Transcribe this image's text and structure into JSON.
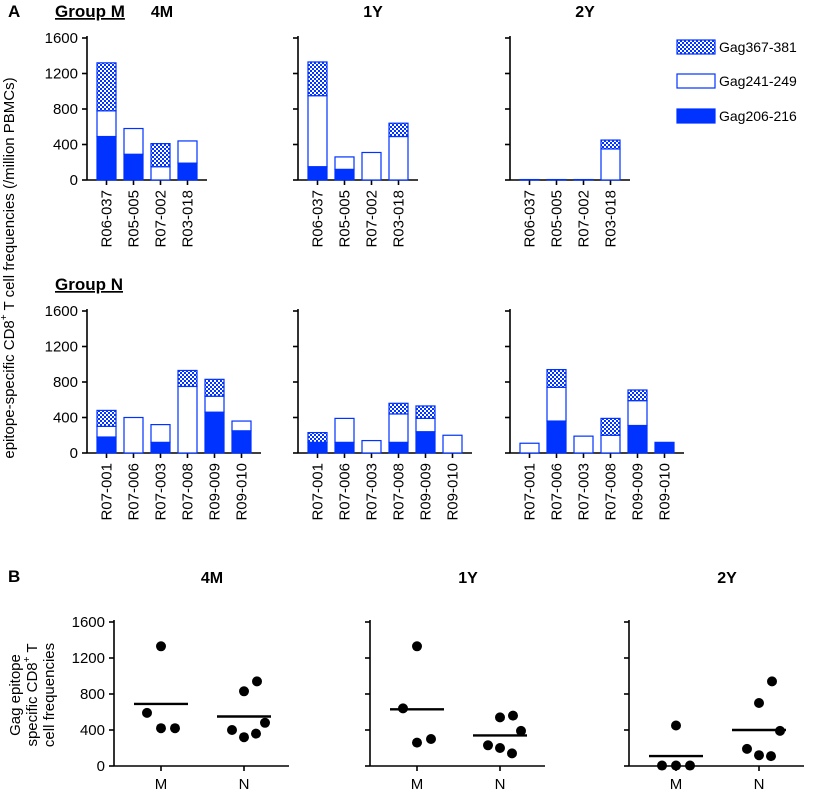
{
  "figure": {
    "label_A": "A",
    "label_B": "B"
  },
  "chart_data": {
    "panel_A": {
      "type": "bar",
      "stacked": true,
      "ylabel_main": "epitope-specific CD8",
      "ylabel_sup": "+",
      "ylabel_tail": " T cell frequencies (/million PBMCs)",
      "ylim": [
        0,
        1600
      ],
      "yticks": [
        "0",
        "400",
        "800",
        "1200",
        "1600"
      ],
      "timepoints": [
        "4M",
        "1Y",
        "2Y"
      ],
      "legend": [
        {
          "name": "Gag367-381",
          "fill": "pattern"
        },
        {
          "name": "Gag241-249",
          "fill": "open"
        },
        {
          "name": "Gag206-216",
          "fill": "solid"
        }
      ],
      "groups": [
        {
          "name": "Group M",
          "categories": [
            "R06-037",
            "R05-005",
            "R07-002",
            "R03-018"
          ],
          "timepoints": [
            {
              "name": "4M",
              "series": [
                {
                  "name": "Gag206-216",
                  "values": [
                    490,
                    290,
                    0,
                    190
                  ]
                },
                {
                  "name": "Gag241-249",
                  "values": [
                    290,
                    290,
                    150,
                    250
                  ]
                },
                {
                  "name": "Gag367-381",
                  "values": [
                    540,
                    0,
                    260,
                    0
                  ]
                }
              ]
            },
            {
              "name": "1Y",
              "series": [
                {
                  "name": "Gag206-216",
                  "values": [
                    150,
                    120,
                    0,
                    0
                  ]
                },
                {
                  "name": "Gag241-249",
                  "values": [
                    800,
                    140,
                    310,
                    490
                  ]
                },
                {
                  "name": "Gag367-381",
                  "values": [
                    380,
                    0,
                    0,
                    150
                  ]
                }
              ]
            },
            {
              "name": "2Y",
              "series": [
                {
                  "name": "Gag206-216",
                  "values": [
                    0,
                    0,
                    0,
                    0
                  ]
                },
                {
                  "name": "Gag241-249",
                  "values": [
                    5,
                    5,
                    5,
                    350
                  ]
                },
                {
                  "name": "Gag367-381",
                  "values": [
                    0,
                    0,
                    0,
                    100
                  ]
                }
              ]
            }
          ]
        },
        {
          "name": "Group N",
          "categories": [
            "R07-001",
            "R07-006",
            "R07-003",
            "R07-008",
            "R09-009",
            "R09-010"
          ],
          "timepoints": [
            {
              "name": "4M",
              "series": [
                {
                  "name": "Gag206-216",
                  "values": [
                    180,
                    0,
                    120,
                    0,
                    460,
                    250
                  ]
                },
                {
                  "name": "Gag241-249",
                  "values": [
                    120,
                    400,
                    200,
                    750,
                    180,
                    110
                  ]
                },
                {
                  "name": "Gag367-381",
                  "values": [
                    180,
                    0,
                    0,
                    180,
                    190,
                    0
                  ]
                }
              ]
            },
            {
              "name": "1Y",
              "series": [
                {
                  "name": "Gag206-216",
                  "values": [
                    120,
                    120,
                    0,
                    120,
                    240,
                    0
                  ]
                },
                {
                  "name": "Gag241-249",
                  "values": [
                    0,
                    270,
                    140,
                    320,
                    150,
                    200
                  ]
                },
                {
                  "name": "Gag367-381",
                  "values": [
                    110,
                    0,
                    0,
                    120,
                    140,
                    0
                  ]
                }
              ]
            },
            {
              "name": "2Y",
              "series": [
                {
                  "name": "Gag206-216",
                  "values": [
                    0,
                    360,
                    0,
                    0,
                    310,
                    120
                  ]
                },
                {
                  "name": "Gag241-249",
                  "values": [
                    110,
                    380,
                    190,
                    200,
                    280,
                    0
                  ]
                },
                {
                  "name": "Gag367-381",
                  "values": [
                    0,
                    200,
                    0,
                    190,
                    120,
                    0
                  ]
                }
              ]
            }
          ]
        }
      ]
    },
    "panel_B": {
      "type": "scatter",
      "ylabel_lines": [
        "Gag epitope",
        "specific CD8",
        "cell frequencies"
      ],
      "ylabel_sup": "+",
      "ylabel_tail": " T",
      "ylim": [
        0,
        1600
      ],
      "yticks": [
        "0",
        "400",
        "800",
        "1200",
        "1600"
      ],
      "categories": [
        "M",
        "N"
      ],
      "panels": [
        {
          "title": "4M",
          "series": [
            {
              "group": "M",
              "values": [
                1330,
                590,
                420,
                420
              ],
              "median": 690
            },
            {
              "group": "N",
              "values": [
                940,
                830,
                480,
                400,
                320,
                360
              ],
              "median": 550
            }
          ]
        },
        {
          "title": "1Y",
          "series": [
            {
              "group": "M",
              "values": [
                1330,
                640,
                260,
                300
              ],
              "median": 630
            },
            {
              "group": "N",
              "values": [
                560,
                540,
                390,
                230,
                200,
                140
              ],
              "median": 340
            }
          ]
        },
        {
          "title": "2Y",
          "series": [
            {
              "group": "M",
              "values": [
                450,
                5,
                5,
                5
              ],
              "median": 110
            },
            {
              "group": "N",
              "values": [
                940,
                700,
                390,
                190,
                120,
                110
              ],
              "median": 400
            }
          ]
        }
      ]
    }
  }
}
